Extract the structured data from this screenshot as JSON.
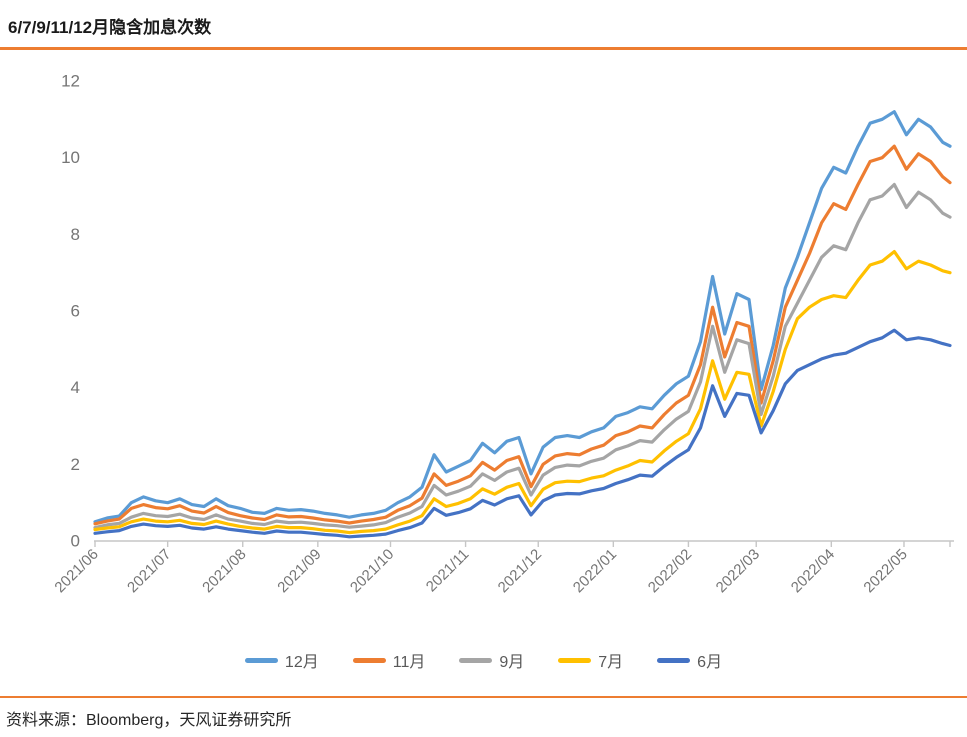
{
  "title": "6/7/9/11/12月隐含加息次数",
  "source": "资料来源：Bloomberg，天风证券研究所",
  "accent_color": "#ED7D31",
  "axis_text_color": "#757575",
  "axis_line_color": "#C6C6C6",
  "chart_data": {
    "type": "line",
    "title": "6/7/9/11/12月隐含加息次数",
    "xlabel": "",
    "ylabel": "",
    "ylim": [
      0,
      12
    ],
    "y_ticks": [
      0,
      2,
      4,
      6,
      8,
      10,
      12
    ],
    "grid": false,
    "legend_position": "bottom",
    "x_unit": "days since 2021/06/01, daily implied Fed rate-hike count",
    "x_tick_labels": [
      "2021/06",
      "2021/07",
      "2021/08",
      "2021/09",
      "2021/10",
      "2021/11",
      "2021/12",
      "2022/01",
      "2022/02",
      "2022/03",
      "2022/04",
      "2022/05"
    ],
    "x_tick_days": [
      0,
      30,
      61,
      92,
      122,
      153,
      183,
      214,
      245,
      273,
      304,
      334
    ],
    "x_end_day": 353,
    "days": [
      0,
      5,
      10,
      15,
      20,
      25,
      30,
      35,
      40,
      45,
      50,
      55,
      60,
      65,
      70,
      75,
      80,
      85,
      90,
      95,
      100,
      105,
      110,
      115,
      120,
      125,
      130,
      135,
      140,
      145,
      150,
      155,
      160,
      165,
      170,
      175,
      180,
      185,
      190,
      195,
      200,
      205,
      210,
      215,
      220,
      225,
      230,
      235,
      240,
      245,
      250,
      255,
      260,
      265,
      270,
      275,
      280,
      285,
      290,
      295,
      300,
      305,
      310,
      315,
      320,
      325,
      330,
      335,
      340,
      345,
      350,
      353
    ],
    "series": [
      {
        "name": "12月",
        "color": "#5B9BD5",
        "values": [
          0.5,
          0.6,
          0.65,
          1.0,
          1.15,
          1.05,
          1.0,
          1.1,
          0.95,
          0.9,
          1.1,
          0.92,
          0.85,
          0.75,
          0.72,
          0.85,
          0.8,
          0.82,
          0.78,
          0.72,
          0.68,
          0.62,
          0.68,
          0.72,
          0.8,
          1.0,
          1.15,
          1.4,
          2.25,
          1.8,
          1.95,
          2.1,
          2.55,
          2.3,
          2.6,
          2.7,
          1.75,
          2.45,
          2.7,
          2.75,
          2.7,
          2.85,
          2.95,
          3.25,
          3.35,
          3.5,
          3.45,
          3.8,
          4.1,
          4.3,
          5.2,
          6.9,
          5.4,
          6.45,
          6.3,
          3.95,
          5.1,
          6.6,
          7.4,
          8.3,
          9.2,
          9.75,
          9.6,
          10.3,
          10.9,
          11.0,
          11.2,
          10.6,
          11.0,
          10.8,
          10.4,
          10.3
        ]
      },
      {
        "name": "11月",
        "color": "#ED7D31",
        "values": [
          0.45,
          0.52,
          0.57,
          0.85,
          0.95,
          0.87,
          0.84,
          0.92,
          0.78,
          0.73,
          0.9,
          0.74,
          0.66,
          0.6,
          0.56,
          0.68,
          0.63,
          0.64,
          0.6,
          0.55,
          0.52,
          0.47,
          0.52,
          0.56,
          0.62,
          0.8,
          0.92,
          1.12,
          1.75,
          1.45,
          1.56,
          1.7,
          2.05,
          1.85,
          2.1,
          2.2,
          1.42,
          2.0,
          2.22,
          2.28,
          2.25,
          2.4,
          2.5,
          2.75,
          2.85,
          3.0,
          2.95,
          3.3,
          3.6,
          3.8,
          4.6,
          6.1,
          4.8,
          5.7,
          5.6,
          3.6,
          4.7,
          6.1,
          6.8,
          7.5,
          8.3,
          8.8,
          8.65,
          9.3,
          9.9,
          10.0,
          10.3,
          9.7,
          10.1,
          9.9,
          9.5,
          9.35
        ]
      },
      {
        "name": "9月",
        "color": "#A5A5A5",
        "values": [
          0.35,
          0.42,
          0.46,
          0.62,
          0.72,
          0.66,
          0.64,
          0.7,
          0.6,
          0.56,
          0.68,
          0.57,
          0.52,
          0.46,
          0.43,
          0.52,
          0.48,
          0.49,
          0.46,
          0.42,
          0.4,
          0.36,
          0.39,
          0.42,
          0.48,
          0.62,
          0.73,
          0.9,
          1.45,
          1.2,
          1.3,
          1.43,
          1.75,
          1.58,
          1.8,
          1.9,
          1.2,
          1.72,
          1.92,
          1.98,
          1.96,
          2.08,
          2.16,
          2.38,
          2.48,
          2.62,
          2.58,
          2.9,
          3.18,
          3.38,
          4.15,
          5.6,
          4.4,
          5.25,
          5.15,
          3.3,
          4.3,
          5.6,
          6.2,
          6.8,
          7.4,
          7.7,
          7.6,
          8.3,
          8.9,
          9.0,
          9.3,
          8.7,
          9.1,
          8.9,
          8.55,
          8.45
        ]
      },
      {
        "name": "7月",
        "color": "#FFC000",
        "values": [
          0.3,
          0.34,
          0.37,
          0.5,
          0.57,
          0.52,
          0.5,
          0.54,
          0.46,
          0.43,
          0.52,
          0.44,
          0.38,
          0.34,
          0.31,
          0.38,
          0.35,
          0.35,
          0.32,
          0.28,
          0.26,
          0.22,
          0.25,
          0.27,
          0.31,
          0.42,
          0.52,
          0.66,
          1.1,
          0.9,
          0.98,
          1.1,
          1.36,
          1.22,
          1.4,
          1.5,
          0.92,
          1.35,
          1.52,
          1.56,
          1.55,
          1.64,
          1.7,
          1.85,
          1.96,
          2.1,
          2.06,
          2.35,
          2.6,
          2.8,
          3.45,
          4.7,
          3.7,
          4.4,
          4.35,
          3.0,
          3.9,
          5.0,
          5.8,
          6.1,
          6.3,
          6.4,
          6.35,
          6.8,
          7.2,
          7.3,
          7.55,
          7.1,
          7.3,
          7.2,
          7.05,
          7.0
        ]
      },
      {
        "name": "6月",
        "color": "#4472C4",
        "values": [
          0.2,
          0.24,
          0.27,
          0.38,
          0.44,
          0.4,
          0.38,
          0.41,
          0.34,
          0.31,
          0.37,
          0.31,
          0.27,
          0.23,
          0.2,
          0.26,
          0.23,
          0.23,
          0.2,
          0.17,
          0.15,
          0.11,
          0.13,
          0.15,
          0.18,
          0.27,
          0.35,
          0.47,
          0.85,
          0.67,
          0.74,
          0.84,
          1.06,
          0.94,
          1.1,
          1.18,
          0.68,
          1.05,
          1.2,
          1.24,
          1.23,
          1.31,
          1.37,
          1.5,
          1.6,
          1.72,
          1.69,
          1.95,
          2.18,
          2.38,
          2.95,
          4.05,
          3.25,
          3.85,
          3.8,
          2.82,
          3.4,
          4.1,
          4.45,
          4.6,
          4.75,
          4.85,
          4.9,
          5.05,
          5.2,
          5.3,
          5.5,
          5.25,
          5.3,
          5.25,
          5.15,
          5.1
        ]
      }
    ]
  }
}
